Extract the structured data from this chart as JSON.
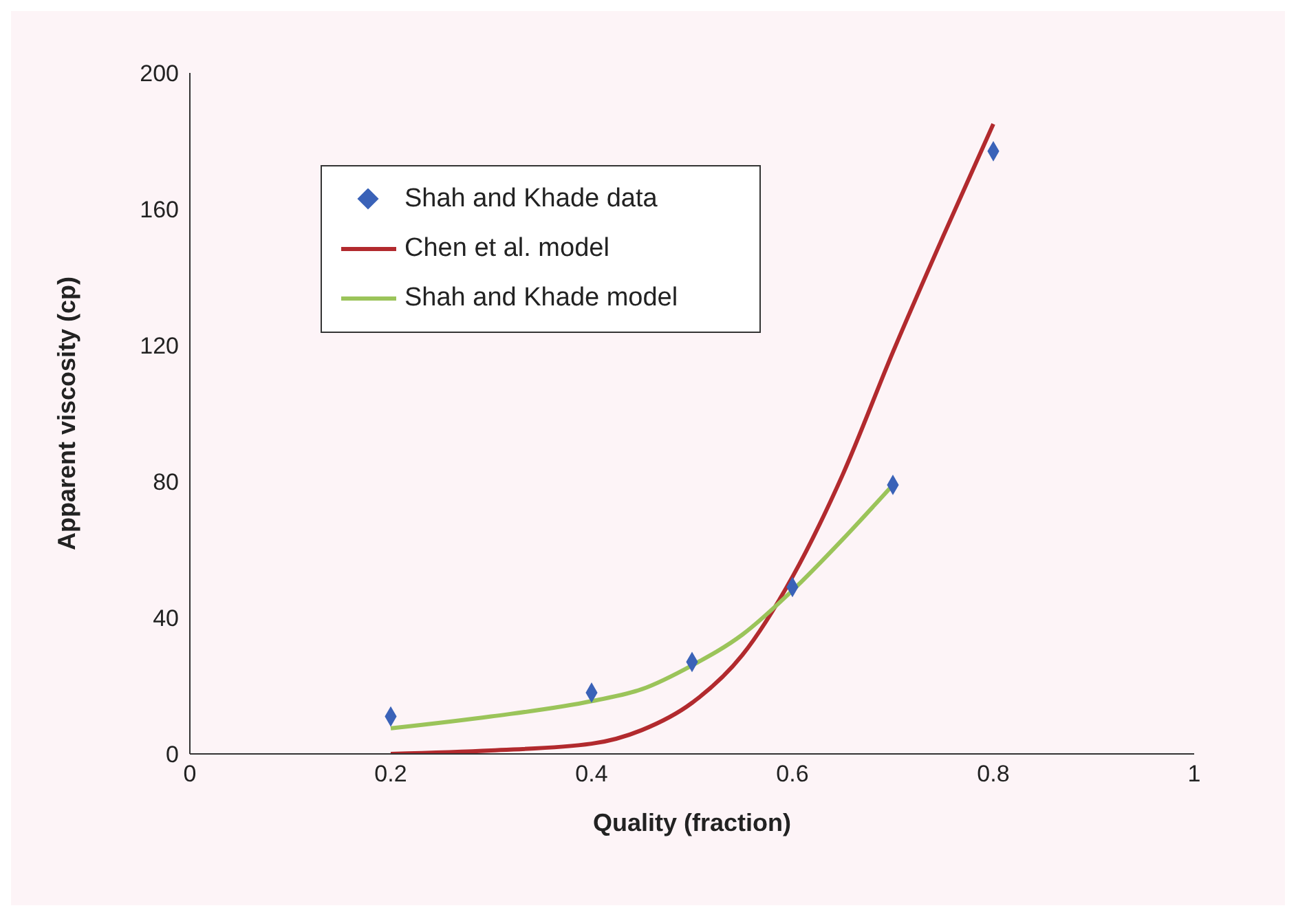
{
  "chart_data": {
    "type": "line",
    "xlabel": "Quality (fraction)",
    "ylabel": "Apparent viscosity (cp)",
    "xlim": [
      0,
      1
    ],
    "xticks": [
      0,
      0.2,
      0.4,
      0.6,
      0.8,
      1
    ],
    "ylim": [
      0,
      200
    ],
    "yticks": [
      0,
      40,
      80,
      120,
      160,
      200
    ],
    "grid": false,
    "legend": "top left",
    "series": [
      {
        "name": "Shah and Khade data",
        "type": "scatter",
        "marker": "diamond",
        "color": "#3a62b8",
        "x": [
          0.2,
          0.4,
          0.5,
          0.6,
          0.7,
          0.8
        ],
        "values": [
          11,
          18,
          27,
          49,
          79,
          177
        ]
      },
      {
        "name": "Chen et al. model",
        "marker": "none",
        "color": "#b22a2e",
        "x": [
          0.2,
          0.3,
          0.4,
          0.45,
          0.5,
          0.55,
          0.6,
          0.65,
          0.7,
          0.75,
          0.8
        ],
        "values": [
          0,
          1,
          3,
          7,
          15,
          29,
          52,
          82,
          118,
          152,
          185
        ]
      },
      {
        "name": "Shah and Khade model",
        "marker": "none",
        "color": "#9bc45a",
        "x": [
          0.2,
          0.3,
          0.4,
          0.45,
          0.5,
          0.55,
          0.6,
          0.65,
          0.7
        ],
        "values": [
          7.5,
          11,
          15.5,
          19,
          26,
          35,
          48,
          63,
          79
        ]
      }
    ]
  }
}
